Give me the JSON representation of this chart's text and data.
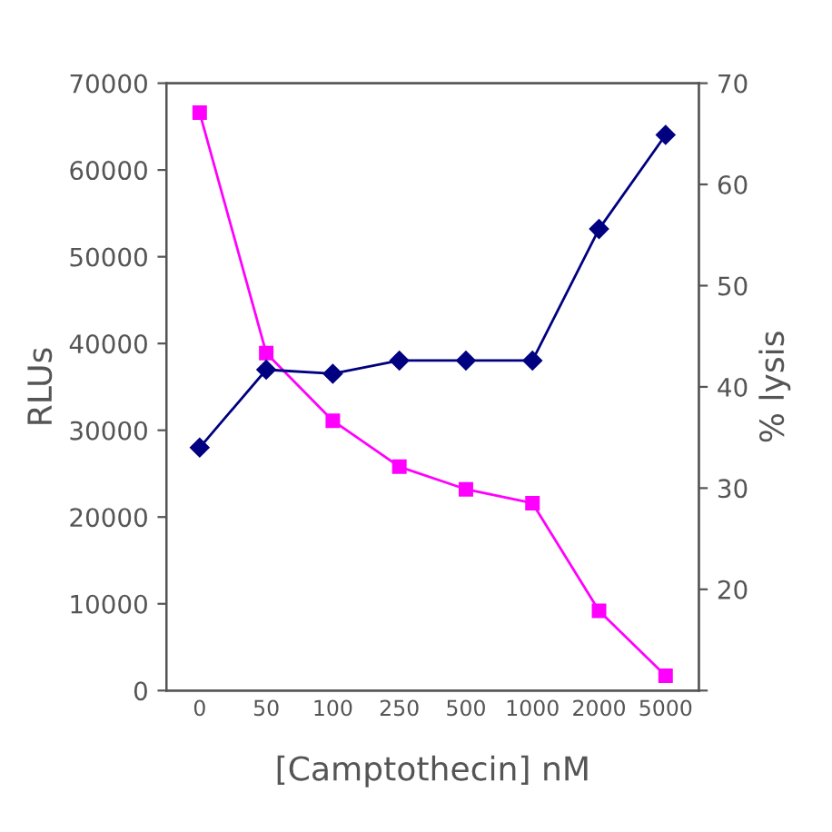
{
  "chart_data": {
    "type": "line",
    "xlabel": "[Camptothecin] nM",
    "ylabel": "RLUs",
    "y2label": "% lysis",
    "categories": [
      "0",
      "50",
      "100",
      "250",
      "500",
      "1000",
      "2000",
      "5000"
    ],
    "series": [
      {
        "color": "#ff00ff",
        "marker": "square",
        "values": [
          66600,
          38900,
          31100,
          25800,
          23200,
          21600,
          9200,
          1700
        ]
      },
      {
        "color": "#000080",
        "marker": "diamond",
        "axis": "y2",
        "values": [
          34.0,
          41.7,
          41.3,
          42.6,
          42.6,
          42.6,
          55.6,
          64.9
        ]
      }
    ],
    "ylim": [
      0,
      70000
    ],
    "yticks": [
      0,
      10000,
      20000,
      30000,
      40000,
      50000,
      60000,
      70000
    ],
    "y2lim": [
      10,
      70
    ],
    "y2ticks": [
      {
        "value": 10,
        "label": null
      },
      20,
      30,
      40,
      50,
      60,
      70
    ],
    "grid": false
  }
}
